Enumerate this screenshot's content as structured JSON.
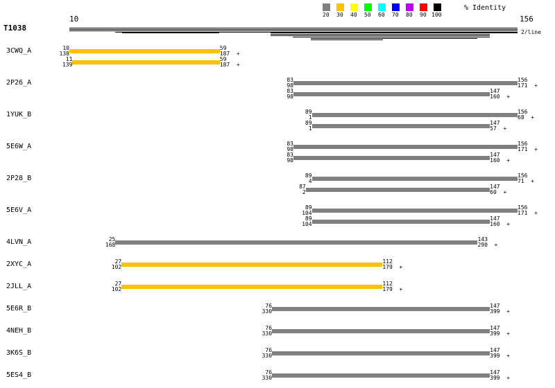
{
  "query": {
    "name": "T1038",
    "start": "10",
    "end": "156",
    "lines_label": "2/line"
  },
  "legend": {
    "title": "% Identity",
    "items": [
      {
        "label": "20",
        "color": "#808080"
      },
      {
        "label": "30",
        "color": "#ffc000"
      },
      {
        "label": "40",
        "color": "#ffff00"
      },
      {
        "label": "50",
        "color": "#00ff00"
      },
      {
        "label": "60",
        "color": "#00ffff"
      },
      {
        "label": "70",
        "color": "#0000ff"
      },
      {
        "label": "80",
        "color": "#c000ff"
      },
      {
        "label": "90",
        "color": "#ff0000"
      },
      {
        "label": "100",
        "color": "#000000"
      }
    ]
  },
  "hits": [
    {
      "name": "3CWQ_A",
      "alignments": [
        {
          "qs": 10,
          "qe": 59,
          "ts": 138,
          "te": 187,
          "color": "#ffc000"
        },
        {
          "qs": 11,
          "qe": 59,
          "ts": 139,
          "te": 187,
          "color": "#ffc000"
        }
      ]
    },
    {
      "name": "2P26_A",
      "alignments": [
        {
          "qs": 83,
          "qe": 156,
          "ts": 98,
          "te": 171,
          "color": "#808080"
        },
        {
          "qs": 83,
          "qe": 147,
          "ts": 98,
          "te": 160,
          "color": "#808080"
        }
      ]
    },
    {
      "name": "1YUK_B",
      "alignments": [
        {
          "qs": 89,
          "qe": 156,
          "ts": 1,
          "te": 68,
          "color": "#808080"
        },
        {
          "qs": 89,
          "qe": 147,
          "ts": 1,
          "te": 57,
          "color": "#808080"
        }
      ]
    },
    {
      "name": "5E6W_A",
      "alignments": [
        {
          "qs": 83,
          "qe": 156,
          "ts": 98,
          "te": 171,
          "color": "#808080"
        },
        {
          "qs": 83,
          "qe": 147,
          "ts": 98,
          "te": 160,
          "color": "#808080"
        }
      ]
    },
    {
      "name": "2P28_B",
      "alignments": [
        {
          "qs": 89,
          "qe": 156,
          "ts": 4,
          "te": 71,
          "color": "#808080"
        },
        {
          "qs": 87,
          "qe": 147,
          "ts": 2,
          "te": 60,
          "color": "#808080"
        }
      ]
    },
    {
      "name": "5E6V_A",
      "alignments": [
        {
          "qs": 89,
          "qe": 156,
          "ts": 104,
          "te": 171,
          "color": "#808080"
        },
        {
          "qs": 89,
          "qe": 147,
          "ts": 104,
          "te": 160,
          "color": "#808080"
        }
      ]
    },
    {
      "name": "4LVN_A",
      "alignments": [
        {
          "qs": 25,
          "qe": 143,
          "ts": 168,
          "te": 290,
          "color": "#808080"
        }
      ]
    },
    {
      "name": "2XYC_A",
      "alignments": [
        {
          "qs": 27,
          "qe": 112,
          "ts": 102,
          "te": 179,
          "color": "#ffc000"
        }
      ]
    },
    {
      "name": "2JLL_A",
      "alignments": [
        {
          "qs": 27,
          "qe": 112,
          "ts": 102,
          "te": 179,
          "color": "#ffc000"
        }
      ]
    },
    {
      "name": "5E6R_B",
      "alignments": [
        {
          "qs": 76,
          "qe": 147,
          "ts": 330,
          "te": 399,
          "color": "#808080"
        }
      ]
    },
    {
      "name": "4NEH_B",
      "alignments": [
        {
          "qs": 76,
          "qe": 147,
          "ts": 330,
          "te": 399,
          "color": "#808080"
        }
      ]
    },
    {
      "name": "3K6S_B",
      "alignments": [
        {
          "qs": 76,
          "qe": 147,
          "ts": 330,
          "te": 399,
          "color": "#808080"
        }
      ]
    },
    {
      "name": "5ES4_B",
      "alignments": [
        {
          "qs": 76,
          "qe": 147,
          "ts": 330,
          "te": 399,
          "color": "#808080"
        }
      ]
    }
  ],
  "strand": "+"
}
